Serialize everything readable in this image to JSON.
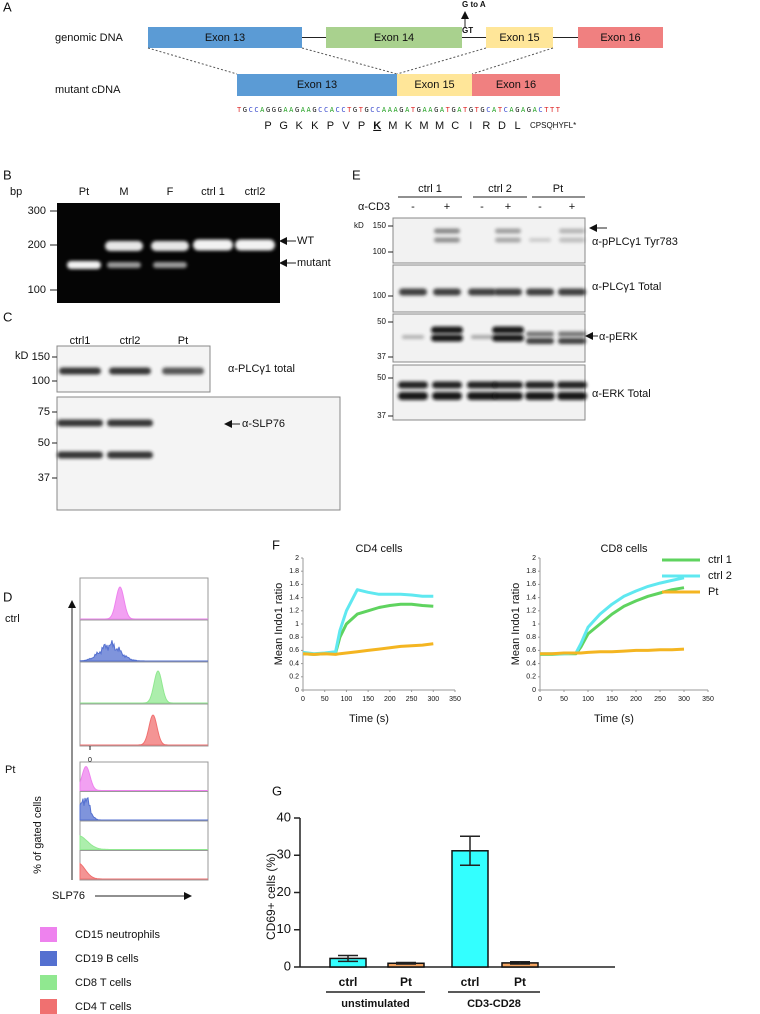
{
  "panels": {
    "A": {
      "label": "A",
      "genomic_label": "genomic DNA",
      "genomic_exons": [
        "Exon 13",
        "Exon 14",
        "Exon 15",
        "Exon 16"
      ],
      "mutation": "G to A",
      "splice_site": "GT",
      "cdna_label": "mutant cDNA",
      "cdna_exons": [
        "Exon 13",
        "Exon 15",
        "Exon 16"
      ],
      "sequence": "TGCCAGGGAAGAAGCCACCTGTGCCAAAGATGAAGATGATGTGCATCAGAGACTTT",
      "amino_acids": [
        "P",
        "G",
        "K",
        "K",
        "P",
        "V",
        "P",
        "K",
        "M",
        "K",
        "M",
        "M",
        "C",
        "I",
        "R",
        "D",
        "L"
      ],
      "frameshift": "CPSQHYFL*"
    },
    "B": {
      "label": "B",
      "unit": "bp",
      "markers": [
        "300",
        "200",
        "100"
      ],
      "lanes": [
        "Pt",
        "M",
        "F",
        "ctrl 1",
        "ctrl2"
      ],
      "bands": [
        "WT",
        "mutant"
      ]
    },
    "C": {
      "label": "C",
      "unit": "kD",
      "lanes": [
        "ctrl1",
        "ctrl2",
        "Pt"
      ],
      "blots": [
        {
          "markers": [
            "150",
            "100"
          ],
          "antibody": "α-PLCγ1 total"
        },
        {
          "markers": [
            "75",
            "50",
            "37"
          ],
          "antibody": "α-SLP76"
        }
      ]
    },
    "D": {
      "label": "D",
      "groups": [
        "ctrl",
        "Pt"
      ],
      "zero_label": "0",
      "y_label": "% of gated cells",
      "x_label": "SLP76",
      "legend": [
        {
          "name": "CD15 neutrophils",
          "color": "#ee82ee"
        },
        {
          "name": "CD19 B cells",
          "color": "#5470d0"
        },
        {
          "name": "CD8 T cells",
          "color": "#90e890"
        },
        {
          "name": "CD4 T cells",
          "color": "#f07070"
        }
      ]
    },
    "E": {
      "label": "E",
      "groups": [
        "ctrl 1",
        "ctrl 2",
        "Pt"
      ],
      "treatment": "α-CD3",
      "conditions": [
        "-",
        "+",
        "-",
        "+",
        "-",
        "+"
      ],
      "unit": "kD",
      "blots": [
        {
          "markers": [
            "150",
            "100"
          ],
          "antibody": "α-pPLCγ1 Tyr783"
        },
        {
          "markers": [
            "100"
          ],
          "antibody": "α-PLCγ1 Total"
        },
        {
          "markers": [
            "50",
            "37"
          ],
          "antibody": "α-pERK"
        },
        {
          "markers": [
            "50",
            "37"
          ],
          "antibody": "α-ERK Total"
        }
      ]
    }
  },
  "chart_data": [
    {
      "type": "line",
      "panel": "F",
      "title": "CD4 cells",
      "x_label": "Time (s)",
      "y_label": "Mean Indo1 ratio",
      "x": [
        0,
        25,
        50,
        75,
        85,
        100,
        125,
        150,
        175,
        200,
        225,
        250,
        275,
        300
      ],
      "series": [
        {
          "name": "ctrl 1",
          "color": "#5fd35f",
          "values": [
            0.55,
            0.54,
            0.55,
            0.56,
            0.8,
            1.0,
            1.15,
            1.2,
            1.25,
            1.28,
            1.3,
            1.3,
            1.28,
            1.27
          ]
        },
        {
          "name": "ctrl 2",
          "color": "#5fe8f0",
          "values": [
            0.57,
            0.55,
            0.56,
            0.58,
            0.9,
            1.2,
            1.52,
            1.48,
            1.45,
            1.45,
            1.45,
            1.44,
            1.42,
            1.42
          ]
        },
        {
          "name": "Pt",
          "color": "#f4b521",
          "values": [
            0.55,
            0.54,
            0.55,
            0.54,
            0.55,
            0.56,
            0.58,
            0.6,
            0.62,
            0.64,
            0.66,
            0.67,
            0.68,
            0.7
          ]
        }
      ],
      "xlim": [
        0,
        350
      ],
      "xticks": [
        0,
        50,
        100,
        150,
        200,
        250,
        300,
        350
      ],
      "ylim": [
        0,
        2
      ],
      "yticks": [
        0,
        0.2,
        0.4,
        0.6,
        0.8,
        1,
        1.2,
        1.4,
        1.6,
        1.8,
        2
      ]
    },
    {
      "type": "line",
      "title": "CD8 cells",
      "x_label": "Time (s)",
      "y_label": "Mean Indo1 ratio",
      "x": [
        0,
        25,
        50,
        75,
        85,
        100,
        125,
        150,
        175,
        200,
        225,
        250,
        275,
        300
      ],
      "series": [
        {
          "color": "#5fd35f",
          "values": [
            0.54,
            0.54,
            0.55,
            0.55,
            0.65,
            0.85,
            1.0,
            1.15,
            1.27,
            1.35,
            1.42,
            1.47,
            1.52,
            1.55
          ]
        },
        {
          "color": "#5fe8f0",
          "values": [
            0.55,
            0.55,
            0.55,
            0.56,
            0.7,
            0.95,
            1.15,
            1.3,
            1.42,
            1.5,
            1.57,
            1.62,
            1.66,
            1.7
          ]
        },
        {
          "color": "#f4b521",
          "values": [
            0.55,
            0.55,
            0.56,
            0.56,
            0.56,
            0.57,
            0.58,
            0.58,
            0.59,
            0.6,
            0.6,
            0.61,
            0.61,
            0.62
          ]
        }
      ],
      "xlim": [
        0,
        350
      ],
      "xticks": [
        0,
        50,
        100,
        150,
        200,
        250,
        300,
        350
      ],
      "ylim": [
        0,
        2
      ],
      "yticks": [
        0,
        0.2,
        0.4,
        0.6,
        0.8,
        1,
        1.2,
        1.4,
        1.6,
        1.8,
        2
      ]
    },
    {
      "type": "bar",
      "panel": "G",
      "y_label": "CD69+ cells (%)",
      "categories": [
        "ctrl",
        "Pt",
        "ctrl",
        "Pt"
      ],
      "groups": [
        "unstimulated",
        "CD3-CD28"
      ],
      "values": [
        2.3,
        1.0,
        31.2,
        1.1
      ],
      "errors": [
        0.8,
        0.2,
        3.9,
        0.3
      ],
      "colors": [
        "#33ffff",
        "#f4a460",
        "#33ffff",
        "#f4a460"
      ],
      "ylim": [
        0,
        40
      ],
      "yticks": [
        0,
        10,
        20,
        30,
        40
      ]
    }
  ]
}
